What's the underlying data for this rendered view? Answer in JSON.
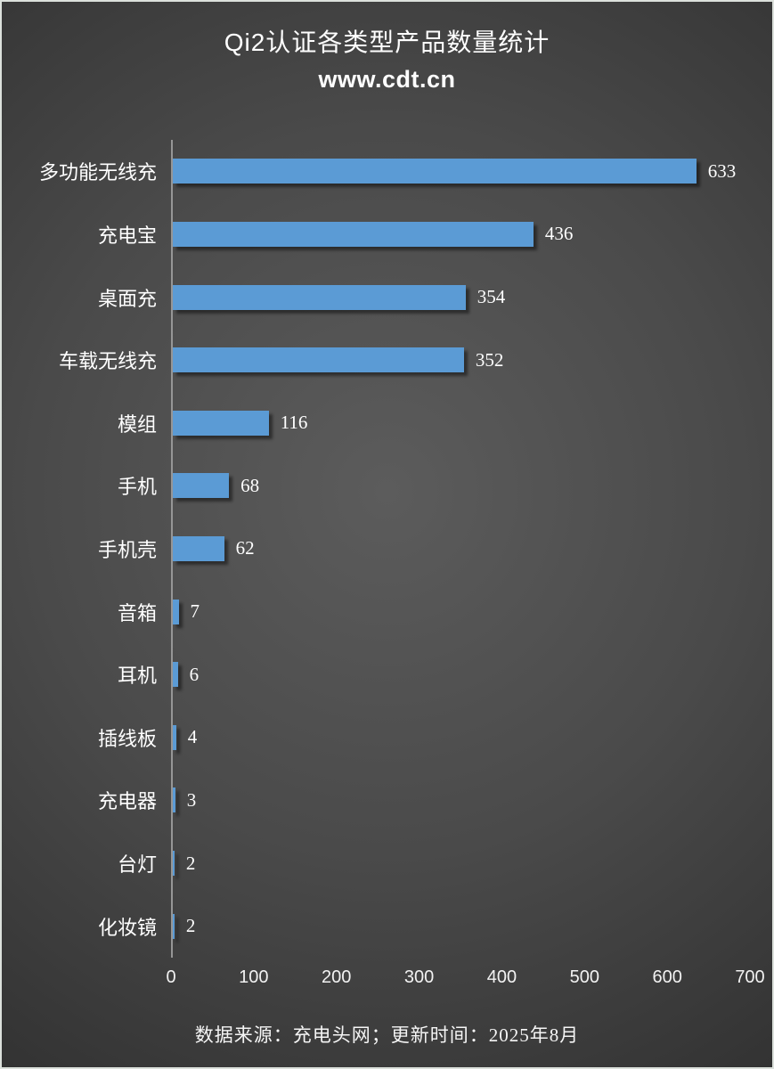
{
  "header": {
    "title": "Qi2认证各类型产品数量统计",
    "subtitle": "www.cdt.cn"
  },
  "footer": {
    "source_text": "数据来源：充电头网；更新时间：2025年8月"
  },
  "colors": {
    "bar": "#5B9BD5",
    "text": "#FFFFFF",
    "axis_line": "#969696",
    "background_center": "#5C5C5C",
    "background_edge": "#242424"
  },
  "chart_data": {
    "type": "bar",
    "orientation": "horizontal",
    "title": "Qi2认证各类型产品数量统计",
    "subtitle": "www.cdt.cn",
    "categories": [
      "多功能无线充",
      "充电宝",
      "桌面充",
      "车载无线充",
      "模组",
      "手机",
      "手机壳",
      "音箱",
      "耳机",
      "插线板",
      "充电器",
      "台灯",
      "化妆镜"
    ],
    "values": [
      633,
      436,
      354,
      352,
      116,
      68,
      62,
      7,
      6,
      4,
      3,
      2,
      2
    ],
    "xlabel": "",
    "ylabel": "",
    "xlim": [
      0,
      700
    ],
    "x_ticks": [
      0,
      100,
      200,
      300,
      400,
      500,
      600,
      700
    ],
    "grid": false,
    "data_labels": true,
    "legend": "none"
  }
}
